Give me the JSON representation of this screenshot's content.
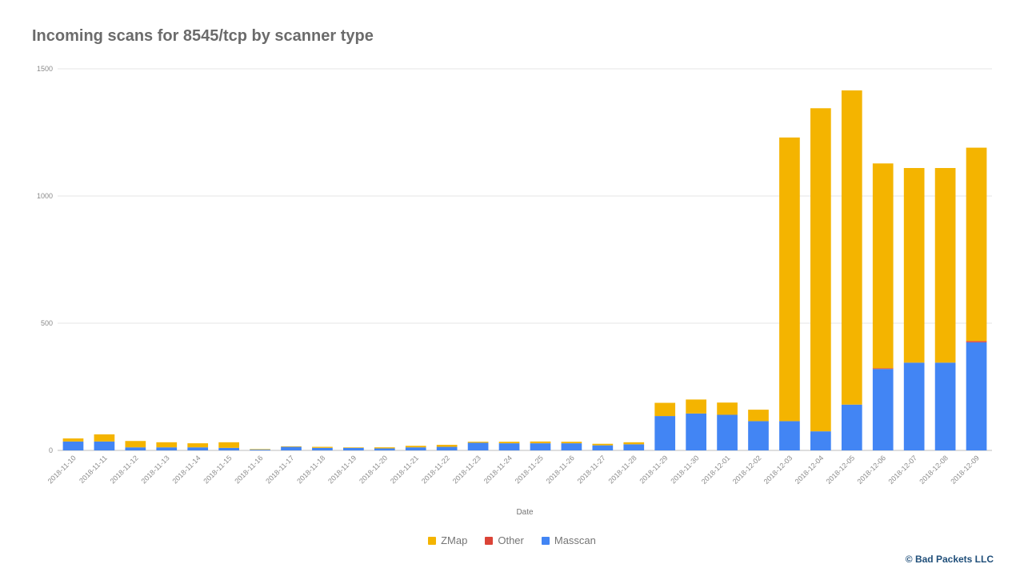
{
  "colors": {
    "zmap": "#f4b400",
    "other": "#db4437",
    "masscan": "#4285f4",
    "grid": "#e6e6e6",
    "axis_text": "#8a8a8a"
  },
  "credit": "© Bad Packets LLC",
  "chart_data": {
    "type": "bar",
    "stacked": true,
    "title": "Incoming scans for 8545/tcp by scanner type",
    "xlabel": "Date",
    "ylabel": "",
    "ylim": [
      0,
      1500
    ],
    "yticks": [
      0,
      500,
      1000,
      1500
    ],
    "grid": true,
    "legend_position": "bottom",
    "categories": [
      "2018-11-10",
      "2018-11-11",
      "2018-11-12",
      "2018-11-13",
      "2018-11-14",
      "2018-11-15",
      "2018-11-16",
      "2018-11-17",
      "2018-11-18",
      "2018-11-19",
      "2018-11-20",
      "2018-11-21",
      "2018-11-22",
      "2018-11-23",
      "2018-11-24",
      "2018-11-25",
      "2018-11-26",
      "2018-11-27",
      "2018-11-28",
      "2018-11-29",
      "2018-11-30",
      "2018-12-01",
      "2018-12-02",
      "2018-12-03",
      "2018-12-04",
      "2018-12-05",
      "2018-12-06",
      "2018-12-07",
      "2018-12-08",
      "2018-12-09"
    ],
    "series": [
      {
        "name": "Masscan",
        "color_key": "masscan",
        "values": [
          35,
          35,
          12,
          12,
          12,
          10,
          3,
          14,
          10,
          10,
          8,
          12,
          14,
          30,
          28,
          28,
          28,
          20,
          24,
          135,
          145,
          140,
          115,
          115,
          75,
          180,
          320,
          345,
          345,
          425
        ]
      },
      {
        "name": "Other",
        "color_key": "other",
        "values": [
          0,
          0,
          0,
          0,
          0,
          0,
          0,
          0,
          0,
          0,
          0,
          0,
          0,
          0,
          0,
          0,
          0,
          0,
          0,
          0,
          0,
          0,
          0,
          0,
          0,
          0,
          3,
          0,
          0,
          5
        ]
      },
      {
        "name": "ZMap",
        "color_key": "zmap",
        "values": [
          12,
          28,
          25,
          20,
          16,
          22,
          2,
          2,
          4,
          2,
          4,
          6,
          8,
          4,
          6,
          7,
          6,
          6,
          8,
          52,
          55,
          48,
          45,
          1115,
          1270,
          1235,
          805,
          765,
          765,
          760
        ]
      }
    ],
    "legend_order": [
      "ZMap",
      "Other",
      "Masscan"
    ]
  }
}
